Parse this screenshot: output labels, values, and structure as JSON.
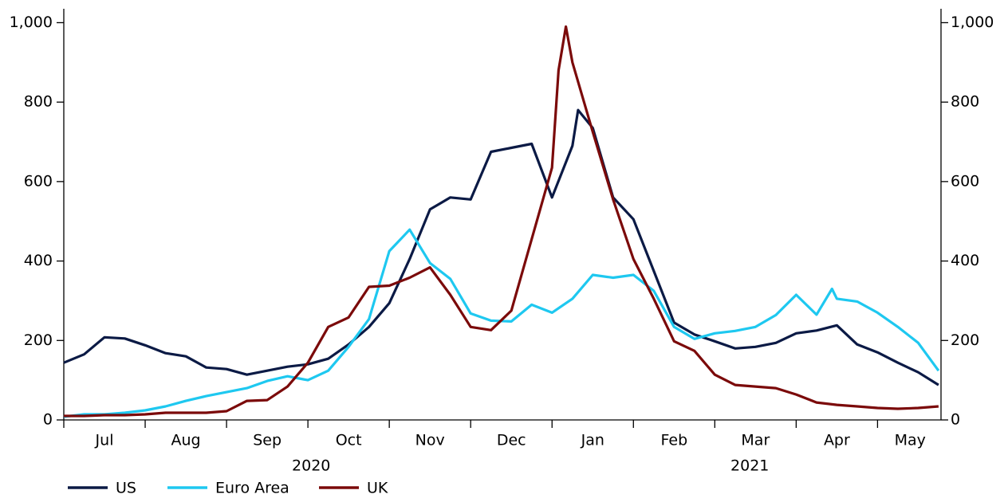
{
  "chart_data": {
    "type": "line",
    "xlim": [
      0,
      10.78
    ],
    "xticks": [
      0,
      1,
      2,
      3,
      4,
      5,
      6,
      7,
      8,
      9,
      10
    ],
    "xtick_labels": [
      {
        "value": 0.5,
        "label": "Jul"
      },
      {
        "value": 1.5,
        "label": "Aug"
      },
      {
        "value": 2.5,
        "label": "Sep"
      },
      {
        "value": 3.5,
        "label": "Oct"
      },
      {
        "value": 4.5,
        "label": "Nov"
      },
      {
        "value": 5.5,
        "label": "Dec"
      },
      {
        "value": 6.5,
        "label": "Jan"
      },
      {
        "value": 7.5,
        "label": "Feb"
      },
      {
        "value": 8.5,
        "label": "Mar"
      },
      {
        "value": 9.5,
        "label": "Apr"
      },
      {
        "value": 10.4,
        "label": "May"
      }
    ],
    "year_labels": [
      {
        "value": 3.04,
        "label": "2020"
      },
      {
        "value": 8.43,
        "label": "2021"
      }
    ],
    "ylim": [
      0,
      1035
    ],
    "yticks": [
      0,
      200,
      400,
      600,
      800,
      {
        "value": 1000,
        "label": "1,000"
      }
    ],
    "y2lim": [
      0,
      1035
    ],
    "y2ticks": [
      0,
      200,
      400,
      600,
      800,
      {
        "value": 1000,
        "label": "1,000"
      }
    ],
    "series": [
      {
        "name": "US",
        "color": "#0b1a45",
        "x": [
          0,
          0.25,
          0.5,
          0.75,
          1,
          1.25,
          1.5,
          1.75,
          2,
          2.25,
          2.5,
          2.75,
          3,
          3.25,
          3.5,
          3.75,
          4,
          4.25,
          4.5,
          4.75,
          5,
          5.25,
          5.5,
          5.75,
          6,
          6.25,
          6.32,
          6.5,
          6.75,
          7,
          7.25,
          7.5,
          7.75,
          8,
          8.25,
          8.5,
          8.75,
          9,
          9.25,
          9.5,
          9.75,
          10,
          10.25,
          10.5,
          10.75
        ],
        "values": [
          144,
          165,
          208,
          205,
          188,
          168,
          160,
          132,
          128,
          114,
          124,
          134,
          140,
          154,
          190,
          234,
          294,
          405,
          530,
          560,
          555,
          675,
          685,
          695,
          560,
          690,
          780,
          735,
          560,
          505,
          375,
          245,
          215,
          198,
          180,
          184,
          194,
          218,
          225,
          238,
          190,
          170,
          144,
          120,
          88
        ]
      },
      {
        "name": "Euro Area",
        "color": "#1ec8f0",
        "x": [
          0,
          0.25,
          0.5,
          0.75,
          1,
          1.25,
          1.5,
          1.75,
          2,
          2.25,
          2.5,
          2.75,
          3,
          3.25,
          3.5,
          3.75,
          4,
          4.25,
          4.5,
          4.75,
          5,
          5.25,
          5.5,
          5.75,
          6,
          6.25,
          6.5,
          6.75,
          7,
          7.25,
          7.5,
          7.75,
          8,
          8.25,
          8.5,
          8.75,
          9,
          9.25,
          9.44,
          9.5,
          9.75,
          10,
          10.25,
          10.5,
          10.75
        ],
        "values": [
          8,
          14,
          14,
          18,
          24,
          34,
          48,
          60,
          70,
          80,
          98,
          110,
          100,
          124,
          184,
          254,
          425,
          479,
          395,
          355,
          268,
          250,
          248,
          290,
          270,
          305,
          365,
          358,
          365,
          325,
          234,
          204,
          218,
          224,
          234,
          264,
          315,
          265,
          330,
          305,
          298,
          270,
          234,
          194,
          124
        ]
      },
      {
        "name": "UK",
        "color": "#7b0a0a",
        "x": [
          0,
          0.25,
          0.5,
          0.75,
          1,
          1.25,
          1.5,
          1.75,
          2,
          2.25,
          2.5,
          2.75,
          3,
          3.25,
          3.5,
          3.75,
          4,
          4.25,
          4.5,
          4.75,
          5,
          5.25,
          5.5,
          5.75,
          6,
          6.08,
          6.17,
          6.25,
          6.5,
          6.75,
          7,
          7.25,
          7.5,
          7.75,
          8,
          8.25,
          8.5,
          8.75,
          9,
          9.25,
          9.5,
          9.75,
          10,
          10.25,
          10.5,
          10.75
        ],
        "values": [
          10,
          10,
          12,
          12,
          14,
          18,
          18,
          18,
          22,
          48,
          50,
          84,
          144,
          234,
          258,
          335,
          338,
          358,
          384,
          315,
          234,
          226,
          275,
          455,
          635,
          880,
          990,
          900,
          725,
          555,
          405,
          305,
          198,
          174,
          114,
          88,
          84,
          80,
          64,
          44,
          38,
          34,
          30,
          28,
          30,
          34
        ]
      }
    ]
  }
}
